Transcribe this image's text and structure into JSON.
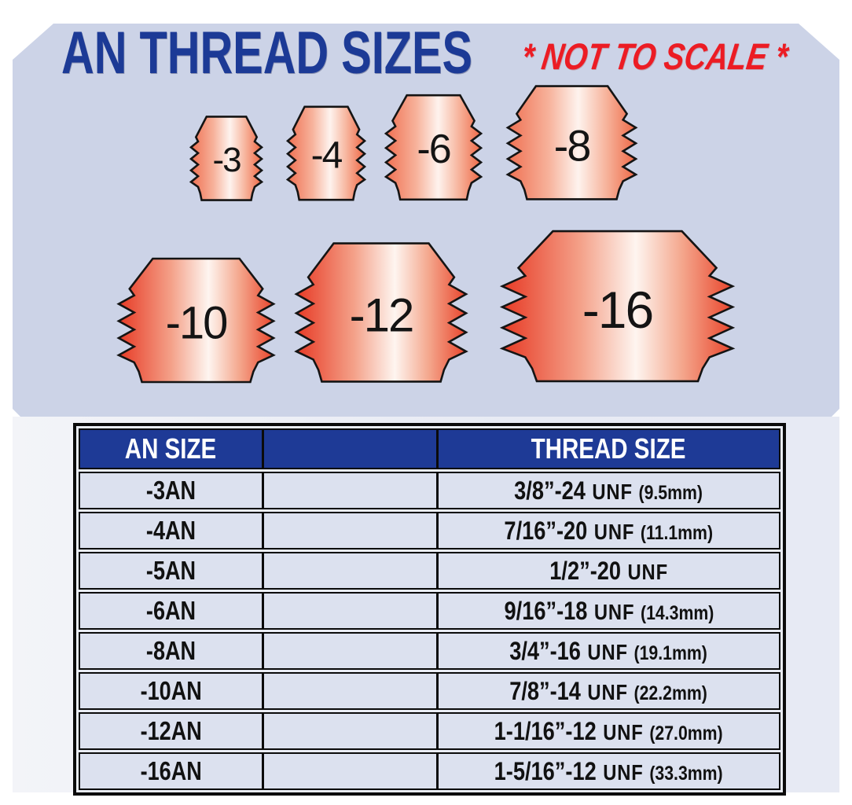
{
  "title": {
    "text": "AN THREAD SIZES",
    "note": "* NOT TO SCALE *"
  },
  "fittings": {
    "row1": [
      "-3",
      "-4",
      "-6",
      "-8"
    ],
    "row2": [
      "-10",
      "-12",
      "-16"
    ]
  },
  "table": {
    "headers": {
      "an": "AN SIZE",
      "middle": "",
      "thread": "THREAD SIZE"
    },
    "rows": [
      {
        "an": "-3AN",
        "size": "3/8”-24",
        "std": "UNF",
        "mm": "(9.5mm)"
      },
      {
        "an": "-4AN",
        "size": "7/16”-20",
        "std": "UNF",
        "mm": "(11.1mm)"
      },
      {
        "an": "-5AN",
        "size": "1/2”-20",
        "std": "UNF",
        "mm": ""
      },
      {
        "an": "-6AN",
        "size": "9/16”-18",
        "std": "UNF",
        "mm": "(14.3mm)"
      },
      {
        "an": "-8AN",
        "size": "3/4”-16",
        "std": "UNF",
        "mm": "(19.1mm)"
      },
      {
        "an": "-10AN",
        "size": "7/8”-14",
        "std": "UNF",
        "mm": "(22.2mm)"
      },
      {
        "an": "-12AN",
        "size": "1-1/16”-12",
        "std": "UNF",
        "mm": "(27.0mm)"
      },
      {
        "an": "-16AN",
        "size": "1-5/16”-12",
        "std": "UNF",
        "mm": "(33.3mm)"
      }
    ]
  },
  "colors": {
    "panel_bg": "#ccd3e7",
    "lower_bg": "#e9ecf4",
    "title_navy": "#1c3a96",
    "note_red": "#ec1c24",
    "header_bg": "#1e3a96",
    "row_bg": "#dce1ef",
    "border_black": "#0b0b0b",
    "fitting_red_light": "#ef6c4a",
    "fitting_red_dark": "#e73a25"
  }
}
